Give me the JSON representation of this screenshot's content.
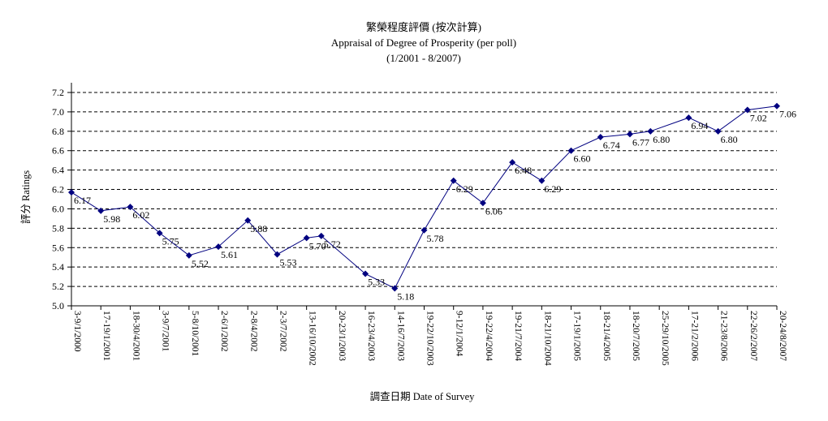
{
  "chart_data": {
    "type": "line",
    "title": "繁榮程度評價 (按次計算)",
    "subtitle": "Appraisal of Degree of Prosperity (per poll)",
    "period": "(1/2001 - 8/2007)",
    "xlabel": "調查日期 Date of Survey",
    "ylabel": "評分 Ratings",
    "ylim": [
      5.0,
      7.2
    ],
    "yticks": [
      "5.0",
      "5.2",
      "5.4",
      "5.6",
      "5.8",
      "6.0",
      "6.2",
      "6.4",
      "6.6",
      "6.8",
      "7.0",
      "7.2"
    ],
    "grid": "horizontal dashed",
    "legend": "none",
    "x_tick_labels": [
      "3-9/1/2000",
      "17-19/1/2001",
      "18-30/4/2001",
      "3-9/7/2001",
      "5-8/10/2001",
      "2-6/1/2002",
      "2-8/4/2002",
      "2-3/7/2002",
      "13-16/10/2002",
      "20-23/1/2003",
      "16-23/4/2003",
      "14-16/7/2003",
      "19-22/10/2003",
      "9-12/1/2004",
      "19-22/4/2004",
      "19-21/7/2004",
      "18-21/10/2004",
      "17-19/1/2005",
      "18-21/4/2005",
      "18-20/7/2005",
      "25-29/10/2005",
      "17-21/2/2006",
      "21-23/8/2006",
      "22-26/2/2007",
      "20-24/8/2007"
    ],
    "x_tick_count": 25,
    "series": [
      {
        "color": "#000080",
        "marker": "diamond",
        "points": [
          {
            "t": 0,
            "value": 6.17,
            "label": "6.17"
          },
          {
            "t": 1,
            "value": 5.98,
            "label": "5.98"
          },
          {
            "t": 2,
            "value": 6.02,
            "label": "6.02"
          },
          {
            "t": 3,
            "value": 5.75,
            "label": "5.75"
          },
          {
            "t": 4,
            "value": 5.52,
            "label": "5.52"
          },
          {
            "t": 5,
            "value": 5.61,
            "label": "5.61"
          },
          {
            "t": 6,
            "value": 5.88,
            "label": "5.88"
          },
          {
            "t": 7,
            "value": 5.53,
            "label": "5.53"
          },
          {
            "t": 8,
            "value": 5.7,
            "label": "5.70"
          },
          {
            "t": 8.5,
            "value": 5.72,
            "label": "5.72"
          },
          {
            "t": 10,
            "value": 5.33,
            "label": "5.33"
          },
          {
            "t": 11,
            "value": 5.18,
            "label": "5.18"
          },
          {
            "t": 12,
            "value": 5.78,
            "label": "5.78"
          },
          {
            "t": 13,
            "value": 6.29,
            "label": "6.29"
          },
          {
            "t": 14,
            "value": 6.06,
            "label": "6.06"
          },
          {
            "t": 15,
            "value": 6.48,
            "label": "6.48"
          },
          {
            "t": 16,
            "value": 6.29,
            "label": "6.29"
          },
          {
            "t": 17,
            "value": 6.6,
            "label": "6.60"
          },
          {
            "t": 18,
            "value": 6.74,
            "label": "6.74"
          },
          {
            "t": 19,
            "value": 6.77,
            "label": "6.77"
          },
          {
            "t": 19.7,
            "value": 6.8,
            "label": "6.80"
          },
          {
            "t": 21,
            "value": 6.94,
            "label": "6.94"
          },
          {
            "t": 22,
            "value": 6.8,
            "label": "6.80"
          },
          {
            "t": 23,
            "value": 7.02,
            "label": "7.02"
          },
          {
            "t": 24,
            "value": 7.06,
            "label": "7.06"
          }
        ]
      }
    ]
  }
}
